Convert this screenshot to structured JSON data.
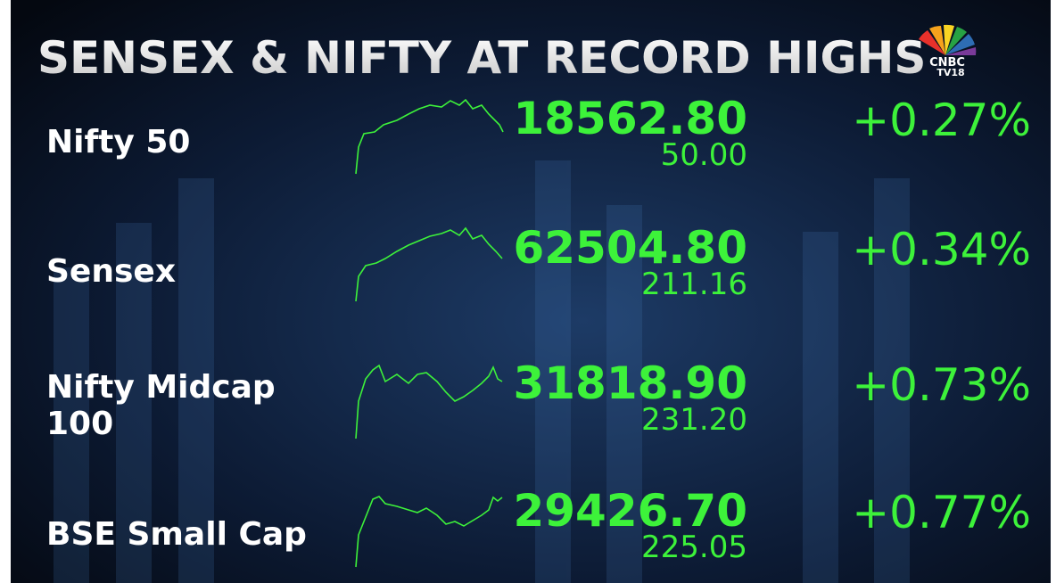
{
  "header": {
    "title": "SENSEX & NIFTY AT RECORD HIGHS",
    "logo": {
      "brand": "CNBC",
      "channel": "TV18"
    }
  },
  "rows": [
    {
      "name": [
        "Nifty 50"
      ],
      "value": "18562.80",
      "change": "50.00",
      "percent": "+0.27%"
    },
    {
      "name": [
        "Sensex"
      ],
      "value": "62504.80",
      "change": "211.16",
      "percent": "+0.34%"
    },
    {
      "name": [
        "Nifty Midcap",
        "100"
      ],
      "value": "31818.90",
      "change": "231.20",
      "percent": "+0.73%"
    },
    {
      "name": [
        "BSE Small Cap"
      ],
      "value": "29426.70",
      "change": "225.05",
      "percent": "+0.77%"
    }
  ]
}
